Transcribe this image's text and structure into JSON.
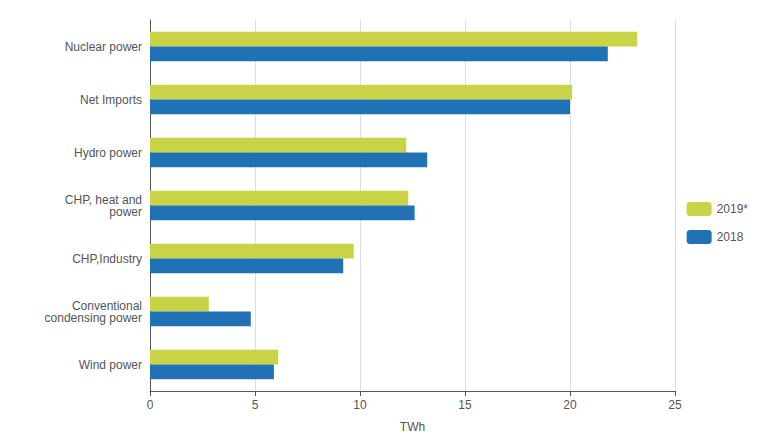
{
  "chart_data": {
    "type": "bar",
    "orientation": "horizontal",
    "categories": [
      "Wind power",
      "Conventional\ncondensing power",
      "CHP,Industry",
      "CHP, heat and\npower",
      "Hydro power",
      "Net Imports",
      "Nuclear power"
    ],
    "series": [
      {
        "name": "2019*",
        "color": "#c8d445",
        "values": [
          6.1,
          2.8,
          9.7,
          12.3,
          12.2,
          20.1,
          23.2
        ]
      },
      {
        "name": "2018",
        "color": "#2171b5",
        "values": [
          5.9,
          4.8,
          9.2,
          12.6,
          13.2,
          20.0,
          21.8
        ]
      }
    ],
    "xlabel": "TWh",
    "xlim": [
      0,
      25
    ],
    "xticks": [
      0,
      5,
      10,
      15,
      20,
      25
    ],
    "grid": true,
    "legend": "right"
  }
}
